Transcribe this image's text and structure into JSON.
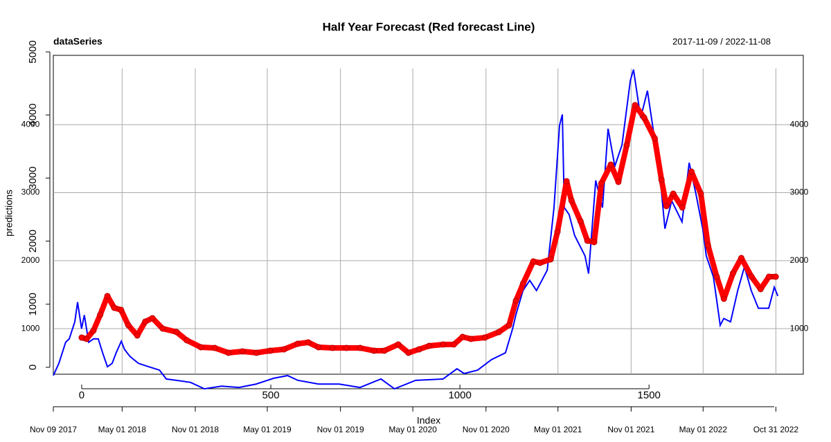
{
  "chart_data": {
    "type": "line",
    "title": "Half Year Forecast (Red forecast Line)",
    "chart_label": "dataSeries",
    "date_range": "2017-11-09 / 2022-11-08",
    "x_label": "Index",
    "y_label": "predictions",
    "grid": true,
    "xlim": [
      -75,
      1831
    ],
    "xticks": [
      0,
      500,
      1000,
      1500
    ],
    "x2lim": [
      "2017-11-09",
      "2022-11-08"
    ],
    "x2ticks": [
      {
        "value": "2017-11-09",
        "label": "Nov 09 2017"
      },
      {
        "value": "2018-05-01",
        "label": "May 01 2018"
      },
      {
        "value": "2018-11-01",
        "label": "Nov 01 2018"
      },
      {
        "value": "2019-05-01",
        "label": "May 01 2019"
      },
      {
        "value": "2019-11-01",
        "label": "Nov 01 2019"
      },
      {
        "value": "2020-05-01",
        "label": "May 01 2020"
      },
      {
        "value": "2020-11-01",
        "label": "Nov 01 2020"
      },
      {
        "value": "2021-05-01",
        "label": "May 01 2021"
      },
      {
        "value": "2021-11-01",
        "label": "Nov 01 2021"
      },
      {
        "value": "2022-05-01",
        "label": "May 01 2022"
      },
      {
        "value": "2022-10-31",
        "label": "Oct 31 2022"
      }
    ],
    "ylim": [
      0,
      5000
    ],
    "yticks": [
      0,
      1000,
      2000,
      3000,
      4000,
      5000
    ],
    "y2lim": [
      330,
      5020
    ],
    "y2ticks": [
      1000,
      2000,
      3000,
      4000
    ],
    "series": [
      {
        "color": "#0000ff",
        "axis": "y2",
        "x_axis": "x2",
        "x": [
          "2017-11-09",
          "2017-11-23",
          "2017-12-10",
          "2017-12-19",
          "2018-01-02",
          "2018-01-09",
          "2018-01-19",
          "2018-01-26",
          "2018-02-06",
          "2018-02-18",
          "2018-03-02",
          "2018-03-13",
          "2018-03-25",
          "2018-04-06",
          "2018-04-16",
          "2018-04-29",
          "2018-05-07",
          "2018-05-21",
          "2018-06-11",
          "2018-07-07",
          "2018-08-03",
          "2018-08-20",
          "2018-09-15",
          "2018-10-20",
          "2018-11-24",
          "2019-01-06",
          "2019-02-19",
          "2019-04-03",
          "2019-05-17",
          "2019-06-21",
          "2019-07-17",
          "2019-09-07",
          "2019-10-29",
          "2019-12-20",
          "2020-02-11",
          "2020-03-16",
          "2020-05-08",
          "2020-07-16",
          "2020-08-20",
          "2020-09-07",
          "2020-10-11",
          "2020-11-15",
          "2020-12-20",
          "2021-01-07",
          "2021-01-15",
          "2021-02-02",
          "2021-02-19",
          "2021-03-08",
          "2021-04-04",
          "2021-04-21",
          "2021-05-05",
          "2021-05-12",
          "2021-05-17",
          "2021-05-29",
          "2021-06-12",
          "2021-07-08",
          "2021-07-17",
          "2021-08-04",
          "2021-08-21",
          "2021-09-04",
          "2021-09-21",
          "2021-10-09",
          "2021-10-30",
          "2021-11-07",
          "2021-11-25",
          "2021-12-12",
          "2021-12-30",
          "2022-01-16",
          "2022-01-25",
          "2022-02-11",
          "2022-03-09",
          "2022-03-27",
          "2022-04-13",
          "2022-04-30",
          "2022-05-09",
          "2022-05-27",
          "2022-06-13",
          "2022-06-22",
          "2022-07-09",
          "2022-07-27",
          "2022-08-13",
          "2022-08-30",
          "2022-09-17",
          "2022-10-13",
          "2022-10-27",
          "2022-11-05"
        ],
        "values": [
          310,
          490,
          800,
          850,
          1100,
          1390,
          1000,
          1200,
          800,
          850,
          850,
          645,
          440,
          490,
          645,
          815,
          695,
          590,
          490,
          440,
          390,
          260,
          240,
          210,
          115,
          155,
          135,
          185,
          270,
          310,
          240,
          185,
          185,
          135,
          260,
          115,
          240,
          260,
          410,
          340,
          390,
          545,
          645,
          1000,
          1200,
          1560,
          1710,
          1560,
          1860,
          2780,
          3990,
          4150,
          2780,
          2680,
          2370,
          2070,
          1810,
          3180,
          2780,
          3940,
          3390,
          3700,
          4650,
          4810,
          4100,
          4500,
          3790,
          3030,
          2470,
          2880,
          2570,
          3440,
          2980,
          2470,
          2070,
          1760,
          1050,
          1150,
          1100,
          1560,
          1910,
          1560,
          1300,
          1300,
          1610,
          1480
        ]
      },
      {
        "color": "#ff0000",
        "marker": "circle",
        "x": [
          0,
          13,
          31,
          49,
          68,
          86,
          104,
          123,
          147,
          168,
          187,
          214,
          251,
          278,
          315,
          352,
          388,
          425,
          462,
          498,
          535,
          571,
          599,
          626,
          663,
          700,
          736,
          773,
          800,
          837,
          864,
          892,
          919,
          956,
          984,
          1007,
          1029,
          1066,
          1103,
          1130,
          1148,
          1167,
          1194,
          1212,
          1240,
          1258,
          1282,
          1295,
          1319,
          1337,
          1355,
          1374,
          1399,
          1419,
          1441,
          1463,
          1487,
          1515,
          1533,
          1546,
          1564,
          1588,
          1612,
          1637,
          1656,
          1679,
          1698,
          1722,
          1744,
          1771,
          1795,
          1817,
          1835
        ],
        "values": [
          471,
          450,
          581,
          833,
          1129,
          943,
          910,
          669,
          504,
          724,
          779,
          614,
          559,
          428,
          318,
          307,
          230,
          252,
          230,
          263,
          285,
          373,
          395,
          318,
          307,
          307,
          307,
          263,
          263,
          362,
          230,
          285,
          340,
          362,
          362,
          482,
          450,
          471,
          559,
          669,
          1053,
          1327,
          1678,
          1656,
          1711,
          2149,
          2950,
          2643,
          2314,
          2007,
          1985,
          2917,
          3213,
          2939,
          3520,
          4156,
          3958,
          3629,
          2971,
          2555,
          2752,
          2533,
          3103,
          2752,
          1930,
          1436,
          1086,
          1491,
          1732,
          1436,
          1239,
          1436,
          1436
        ]
      }
    ]
  }
}
